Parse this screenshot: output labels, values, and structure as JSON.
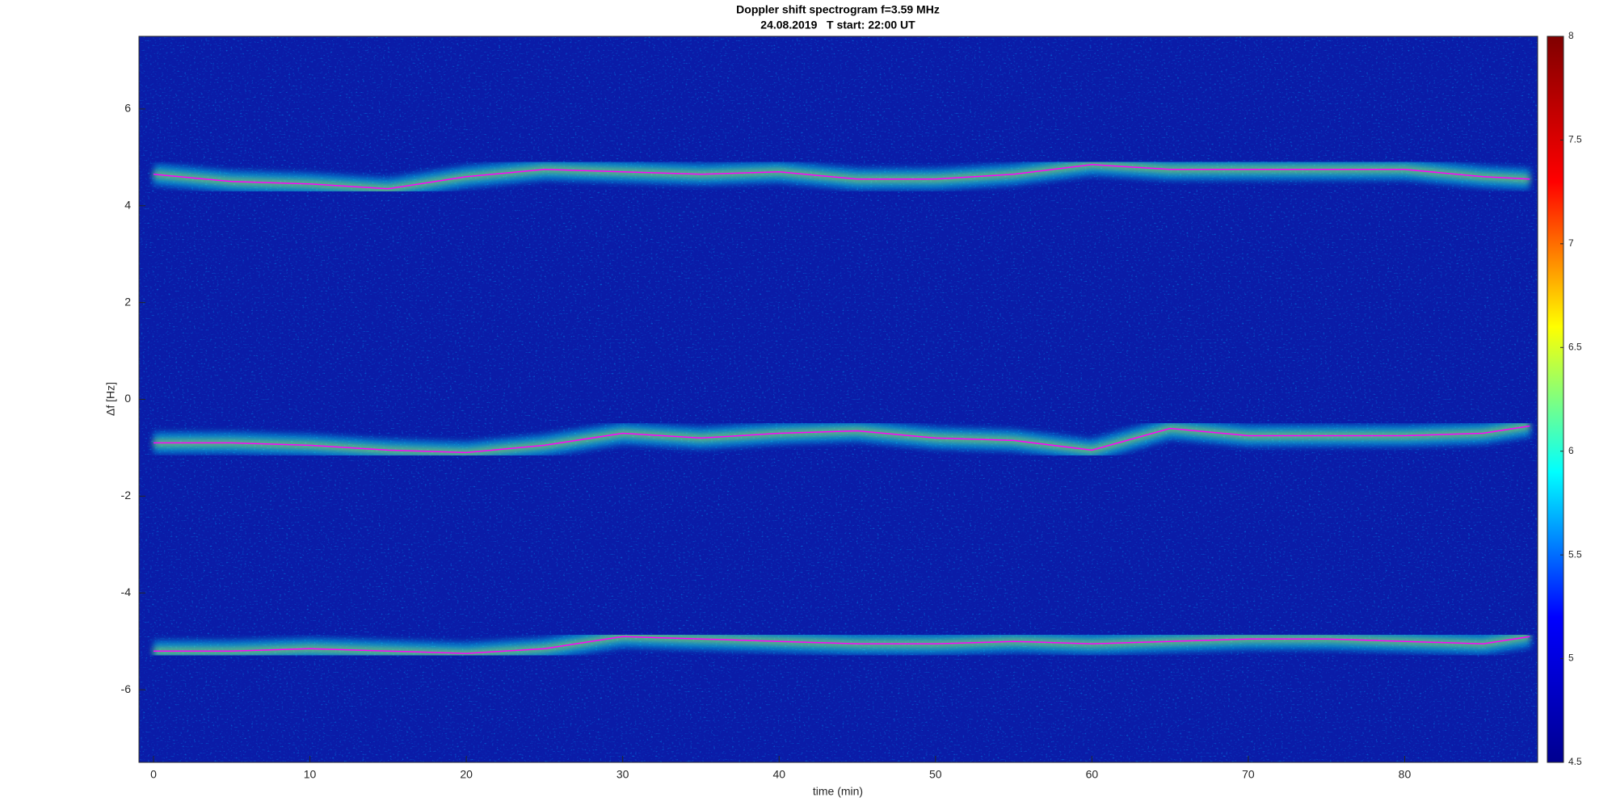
{
  "chart_data": {
    "type": "spectrogram",
    "title": "Doppler shift spectrogram f=3.59 MHz",
    "subtitle": "24.08.2019   T start: 22:00 UT",
    "x_label": "time (min)",
    "y_label": "Δf [Hz]",
    "xlim": [
      -0.93,
      88.5
    ],
    "xticks": [
      0,
      10,
      20,
      30,
      40,
      50,
      60,
      70,
      80
    ],
    "ylim": [
      -7.5,
      7.5
    ],
    "yticks": [
      -6,
      -4,
      -2,
      0,
      2,
      4,
      6
    ],
    "clim": [
      4.5,
      8
    ],
    "cticks": [
      4.5,
      5,
      5.5,
      6,
      6.5,
      7,
      7.5,
      8
    ],
    "colormap": [
      "#00008f",
      "#0000ff",
      "#00ffff",
      "#ffff00",
      "#ff0000",
      "#800000"
    ],
    "background": "#0a1ca8",
    "x": [
      0,
      5,
      10,
      15,
      20,
      25,
      30,
      35,
      40,
      45,
      50,
      55,
      60,
      65,
      70,
      75,
      80,
      85,
      88
    ],
    "series": [
      {
        "color": "#ff00ff",
        "values": [
          4.65,
          4.5,
          4.45,
          4.35,
          4.6,
          4.75,
          4.7,
          4.65,
          4.7,
          4.55,
          4.55,
          4.65,
          4.85,
          4.75,
          4.75,
          4.75,
          4.75,
          4.6,
          4.55
        ]
      },
      {
        "color": "#ff00ff",
        "values": [
          -0.9,
          -0.9,
          -0.95,
          -1.05,
          -1.1,
          -0.95,
          -0.7,
          -0.8,
          -0.7,
          -0.65,
          -0.8,
          -0.85,
          -1.05,
          -0.6,
          -0.75,
          -0.75,
          -0.75,
          -0.7,
          -0.55
        ]
      },
      {
        "color": "#ff00ff",
        "values": [
          -5.2,
          -5.2,
          -5.15,
          -5.2,
          -5.25,
          -5.15,
          -4.9,
          -4.95,
          -5.0,
          -5.05,
          -5.05,
          -5.0,
          -5.05,
          -5.0,
          -4.95,
          -4.95,
          -5.0,
          -5.05,
          -4.9
        ]
      }
    ]
  }
}
